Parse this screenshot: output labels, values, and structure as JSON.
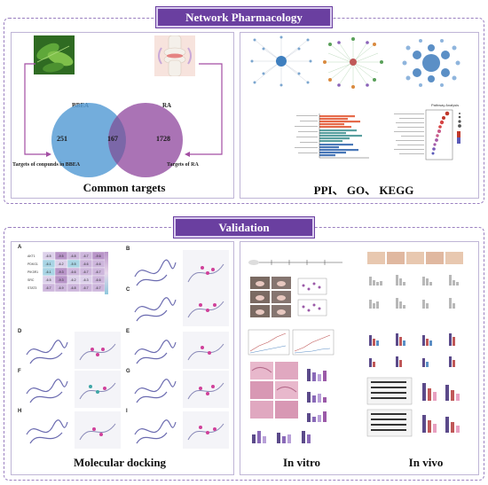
{
  "network_section": {
    "title": "Network Pharmacology",
    "left_panel": {
      "bbea_label": "BBEA",
      "ra_label": "RA",
      "venn": {
        "left_only": "251",
        "overlap": "167",
        "right_only": "1728"
      },
      "targets_left": "Targets of conpunds in BBEA",
      "targets_right": "Targets of RA",
      "caption": "Common targets"
    },
    "right_panel": {
      "pathway_title": "Pathway Analysis",
      "caption": "PPI、 GO、 KEGG"
    }
  },
  "validation_section": {
    "title": "Validation",
    "docking": {
      "caption": "Molecular docking",
      "panel_letters": [
        "A",
        "B",
        "C",
        "D",
        "E",
        "F",
        "G",
        "H",
        "I"
      ],
      "heatmap_rows": [
        "AKT1",
        "PDKG1",
        "PIK3R1",
        "SRC",
        "STAT3"
      ],
      "heatmap_values": [
        [
          "-6.5",
          "-9.5",
          "-6.8",
          "-6.7",
          "-9.6"
        ],
        [
          "-6.1",
          "-6.2",
          "-5.5",
          "-6.6",
          "-6.6"
        ],
        [
          "-6.1",
          "-9.3",
          "-6.6",
          "-6.7",
          "-6.7"
        ],
        [
          "-6.5",
          "-9.3",
          "-6.2",
          "-6.3",
          "-6.6"
        ],
        [
          "-6.7",
          "-6.9",
          "-6.8",
          "-6.7",
          "-6.7"
        ]
      ]
    },
    "in_vitro": {
      "caption": "In vitro"
    },
    "in_vivo": {
      "caption": "In vivo"
    }
  },
  "colors": {
    "banner": "#6a3fa0",
    "border": "#9a7fc0",
    "venn_left": "#5b9fd6",
    "venn_right": "#9b5aa8",
    "arrow": "#a34ea3"
  }
}
